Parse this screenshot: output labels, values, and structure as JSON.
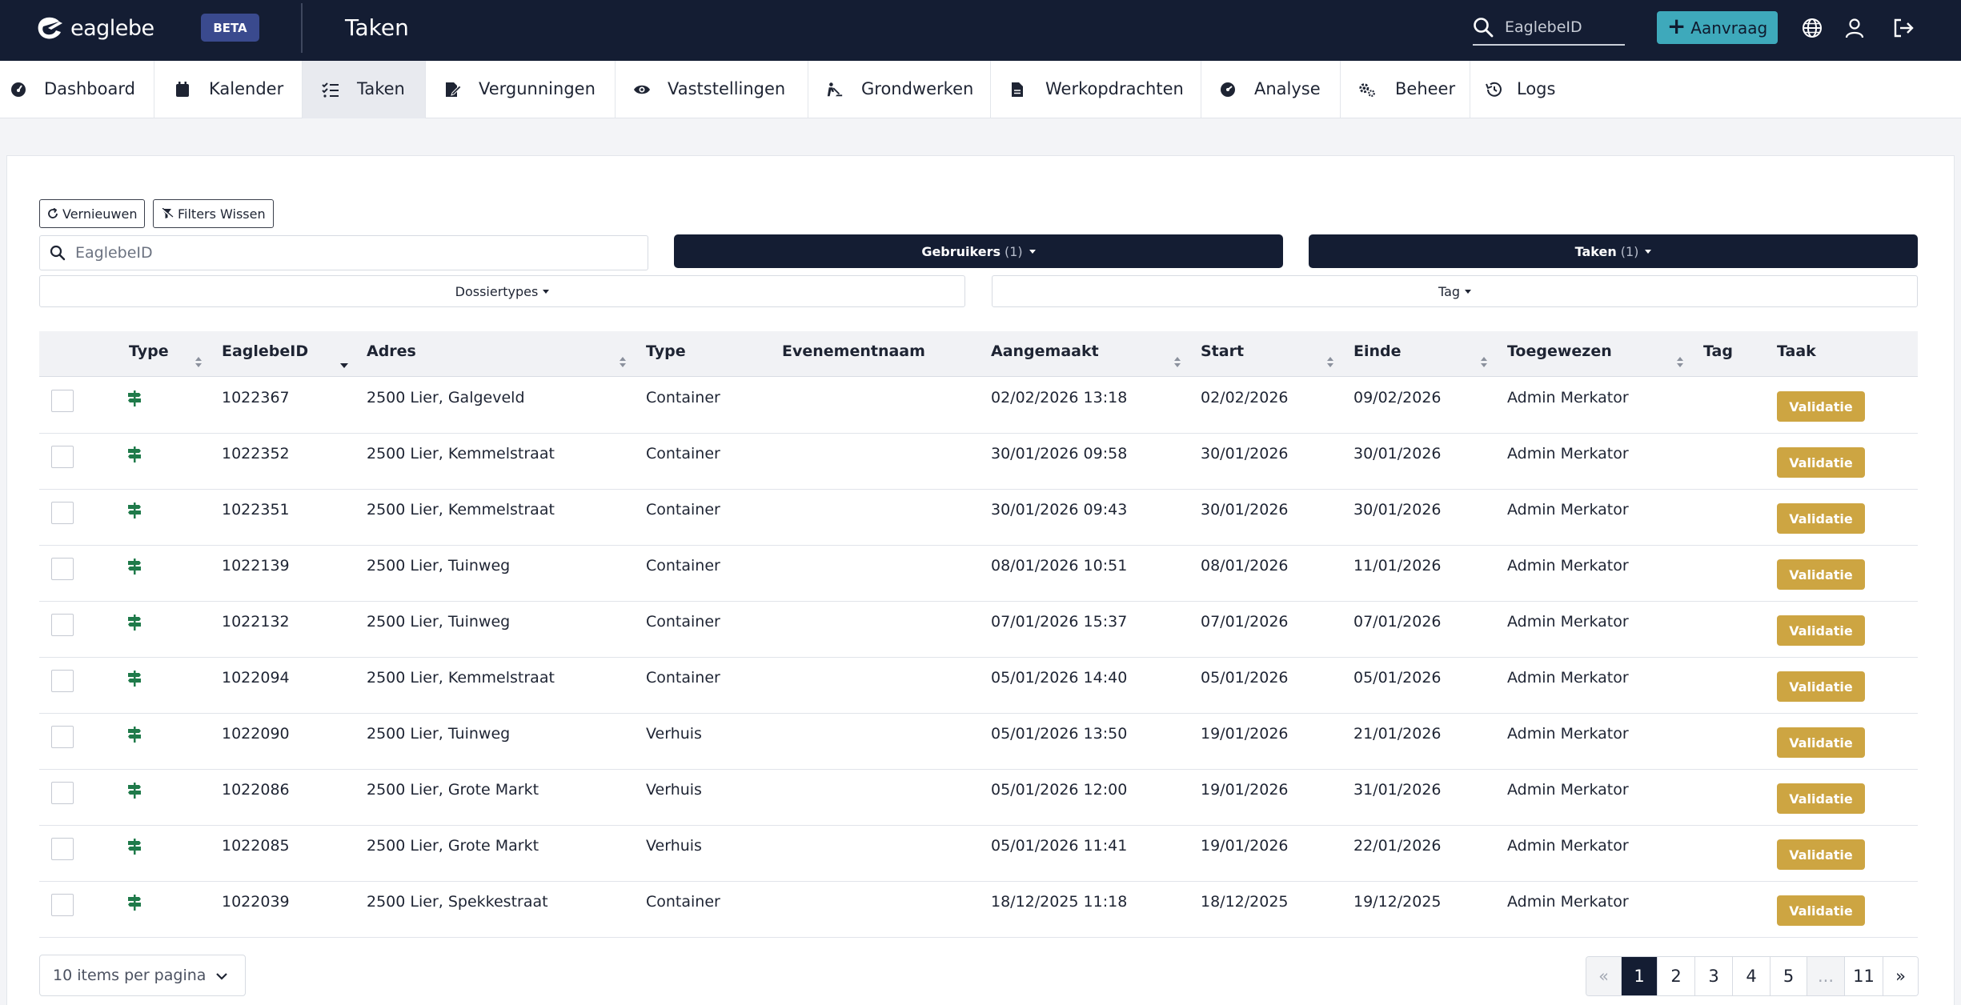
{
  "header": {
    "logo_text": "eaglebe",
    "beta_label": "BETA",
    "page_title": "Taken",
    "search_placeholder": "EaglebeID",
    "aanvraag_label": "Aanvraag",
    "icons": [
      "globe-icon",
      "user-icon",
      "logout-icon"
    ]
  },
  "nav": {
    "items": [
      {
        "label": "Dashboard",
        "icon": "dashboard-icon",
        "active": false
      },
      {
        "label": "Kalender",
        "icon": "calendar-icon",
        "active": false
      },
      {
        "label": "Taken",
        "icon": "tasks-icon",
        "active": true
      },
      {
        "label": "Vergunningen",
        "icon": "permit-icon",
        "active": false
      },
      {
        "label": "Vaststellingen",
        "icon": "eye-icon",
        "active": false
      },
      {
        "label": "Grondwerken",
        "icon": "digging-icon",
        "active": false
      },
      {
        "label": "Werkopdrachten",
        "icon": "document-icon",
        "active": false
      },
      {
        "label": "Analyse",
        "icon": "gauge-icon",
        "active": false
      },
      {
        "label": "Beheer",
        "icon": "cogs-icon",
        "active": false
      },
      {
        "label": "Logs",
        "icon": "history-icon",
        "active": false
      }
    ]
  },
  "toolbar": {
    "refresh_label": "Vernieuwen",
    "clear_filters_label": "Filters Wissen",
    "search_placeholder": "EaglebeID",
    "users_label": "Gebruikers",
    "users_count": "(1)",
    "tasks_label": "Taken",
    "tasks_count": "(1)",
    "dossiertypes_label": "Dossiertypes",
    "tag_label": "Tag"
  },
  "table": {
    "columns": [
      "Type",
      "EaglebeID",
      "Adres",
      "Type",
      "Evenementnaam",
      "Aangemaakt",
      "Start",
      "Einde",
      "Toegewezen",
      "Tag",
      "Taak"
    ],
    "rows": [
      {
        "id": "1022367",
        "adres": "2500 Lier, Galgeveld",
        "type": "Container",
        "evenement": "",
        "aangemaakt": "02/02/2026 13:18",
        "start": "02/02/2026",
        "einde": "09/02/2026",
        "toegewezen": "Admin Merkator",
        "tag": "",
        "taak": "Validatie"
      },
      {
        "id": "1022352",
        "adres": "2500 Lier, Kemmelstraat",
        "type": "Container",
        "evenement": "",
        "aangemaakt": "30/01/2026 09:58",
        "start": "30/01/2026",
        "einde": "30/01/2026",
        "toegewezen": "Admin Merkator",
        "tag": "",
        "taak": "Validatie"
      },
      {
        "id": "1022351",
        "adres": "2500 Lier, Kemmelstraat",
        "type": "Container",
        "evenement": "",
        "aangemaakt": "30/01/2026 09:43",
        "start": "30/01/2026",
        "einde": "30/01/2026",
        "toegewezen": "Admin Merkator",
        "tag": "",
        "taak": "Validatie"
      },
      {
        "id": "1022139",
        "adres": "2500 Lier, Tuinweg",
        "type": "Container",
        "evenement": "",
        "aangemaakt": "08/01/2026 10:51",
        "start": "08/01/2026",
        "einde": "11/01/2026",
        "toegewezen": "Admin Merkator",
        "tag": "",
        "taak": "Validatie"
      },
      {
        "id": "1022132",
        "adres": "2500 Lier, Tuinweg",
        "type": "Container",
        "evenement": "",
        "aangemaakt": "07/01/2026 15:37",
        "start": "07/01/2026",
        "einde": "07/01/2026",
        "toegewezen": "Admin Merkator",
        "tag": "",
        "taak": "Validatie"
      },
      {
        "id": "1022094",
        "adres": "2500 Lier, Kemmelstraat",
        "type": "Container",
        "evenement": "",
        "aangemaakt": "05/01/2026 14:40",
        "start": "05/01/2026",
        "einde": "05/01/2026",
        "toegewezen": "Admin Merkator",
        "tag": "",
        "taak": "Validatie"
      },
      {
        "id": "1022090",
        "adres": "2500 Lier, Tuinweg",
        "type": "Verhuis",
        "evenement": "",
        "aangemaakt": "05/01/2026 13:50",
        "start": "19/01/2026",
        "einde": "21/01/2026",
        "toegewezen": "Admin Merkator",
        "tag": "",
        "taak": "Validatie"
      },
      {
        "id": "1022086",
        "adres": "2500 Lier, Grote Markt",
        "type": "Verhuis",
        "evenement": "",
        "aangemaakt": "05/01/2026 12:00",
        "start": "19/01/2026",
        "einde": "31/01/2026",
        "toegewezen": "Admin Merkator",
        "tag": "",
        "taak": "Validatie"
      },
      {
        "id": "1022085",
        "adres": "2500 Lier, Grote Markt",
        "type": "Verhuis",
        "evenement": "",
        "aangemaakt": "05/01/2026 11:41",
        "start": "19/01/2026",
        "einde": "22/01/2026",
        "toegewezen": "Admin Merkator",
        "tag": "",
        "taak": "Validatie"
      },
      {
        "id": "1022039",
        "adres": "2500 Lier, Spekkestraat",
        "type": "Container",
        "evenement": "",
        "aangemaakt": "18/12/2025 11:18",
        "start": "18/12/2025",
        "einde": "19/12/2025",
        "toegewezen": "Admin Merkator",
        "tag": "",
        "taak": "Validatie"
      }
    ]
  },
  "footer": {
    "per_page_label": "10 items per pagina",
    "pagination": [
      "«",
      "1",
      "2",
      "3",
      "4",
      "5",
      "...",
      "11",
      "»"
    ],
    "current_page": "1"
  },
  "colors": {
    "header_bg": "#141d33",
    "accent": "#3ea9bb",
    "badge": "#cda542",
    "type_icon": "#1f7a4a"
  }
}
